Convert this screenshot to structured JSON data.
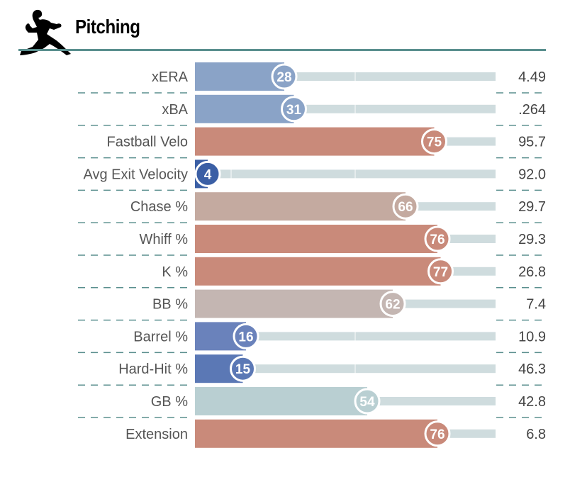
{
  "header": {
    "title": "Pitching"
  },
  "chart_data": {
    "type": "bar",
    "categories": [
      "xERA",
      "xBA",
      "Fastball Velo",
      "Avg Exit Velocity",
      "Chase %",
      "Whiff %",
      "K %",
      "BB %",
      "Barrel %",
      "Hard-Hit %",
      "GB %",
      "Extension"
    ],
    "values": [
      28,
      31,
      75,
      4,
      66,
      76,
      77,
      62,
      16,
      15,
      54,
      76
    ],
    "stat_values": [
      "4.49",
      ".264",
      "95.7",
      "92.0",
      "29.7",
      "29.3",
      "26.8",
      "7.4",
      "10.9",
      "46.3",
      "42.8",
      "6.8"
    ],
    "xlim": [
      0,
      100
    ],
    "grid": true,
    "colors": [
      "#8aa3c7",
      "#8aa3c7",
      "#c98a7a",
      "#3b5fa5",
      "#c4aaa0",
      "#c98a7a",
      "#c98a7a",
      "#c4b6b2",
      "#6a82bb",
      "#5b78b5",
      "#b9cfd2",
      "#c98a7a"
    ]
  }
}
